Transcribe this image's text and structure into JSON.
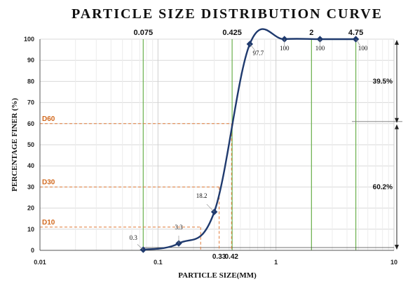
{
  "chart_data": {
    "type": "scatter",
    "title": "PARTICLE SIZE DISTRIBUTION CURVE",
    "xlabel": "PARTICLE SIZE(MM)",
    "ylabel": "PERCENTAGE FINER (%)",
    "xscale": "log",
    "xlim": [
      0.01,
      10
    ],
    "ylim": [
      0,
      100
    ],
    "xticks": [
      "0.01",
      "0.1",
      "1",
      "10"
    ],
    "yticks": [
      0,
      10,
      20,
      30,
      40,
      50,
      60,
      70,
      80,
      90,
      100
    ],
    "grid": true,
    "series": [
      {
        "color": "#1f3a6e",
        "points": [
          {
            "x": 0.075,
            "y": 0.3,
            "label": "0.3"
          },
          {
            "x": 0.15,
            "y": 3.3,
            "label": "3.3"
          },
          {
            "x": 0.3,
            "y": 18.2,
            "label": "18.2"
          },
          {
            "x": 0.6,
            "y": 97.7,
            "label": "97.7"
          },
          {
            "x": 1.18,
            "y": 100,
            "label": "100"
          },
          {
            "x": 2.36,
            "y": 100,
            "label": "100"
          },
          {
            "x": 4.75,
            "y": 100,
            "label": "100"
          }
        ]
      }
    ],
    "sieve_lines": [
      {
        "x": 0.075,
        "label": "0.075",
        "color": "#6ab04c"
      },
      {
        "x": 0.425,
        "label": "0.425",
        "color": "#6ab04c"
      },
      {
        "x": 2,
        "label": "2",
        "color": "#6ab04c"
      },
      {
        "x": 4.75,
        "label": "4.75",
        "color": "#6ab04c"
      }
    ],
    "d_markers": [
      {
        "name": "D60",
        "y": 60,
        "x": 0.42,
        "xlabel": "0.42"
      },
      {
        "name": "D30",
        "y": 30,
        "x": 0.33,
        "xlabel": "0.33"
      },
      {
        "name": "D10",
        "y": 11,
        "x": 0.23,
        "xlabel": ""
      }
    ],
    "d_color": "#e07b39",
    "percent_brackets": [
      {
        "from": 60,
        "to": 100,
        "label": "39.5%"
      },
      {
        "from": 0,
        "to": 60,
        "label": "60.2%"
      }
    ]
  }
}
